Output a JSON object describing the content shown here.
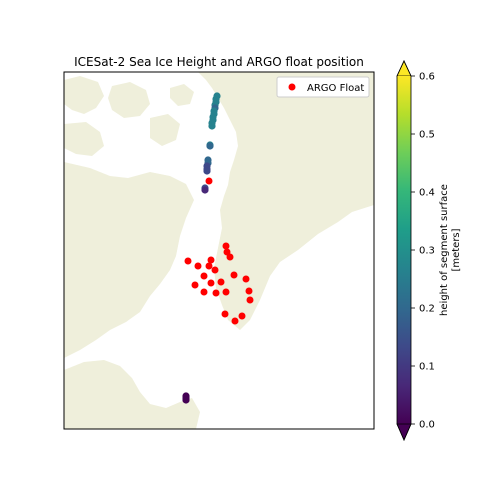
{
  "title": "ICESat-2 Sea Ice Height and ARGO float position",
  "legend": {
    "label": "ARGO Float",
    "marker_color": "#ff0000",
    "placement": "top-right"
  },
  "colorbar": {
    "label_line1": "height of segment surface",
    "label_line2": "[meters]",
    "min": 0.0,
    "max": 0.6,
    "ticks": [
      "0.0",
      "0.1",
      "0.2",
      "0.3",
      "0.4",
      "0.5",
      "0.6"
    ],
    "colormap": "viridis",
    "extend": "both"
  },
  "colors": {
    "land": "#efefdb",
    "ocean": "#ffffff",
    "argo": "#ff0000",
    "viridis": [
      "#440154",
      "#482878",
      "#3e4989",
      "#31688e",
      "#26828e",
      "#1f9e89",
      "#35b779",
      "#6ece58",
      "#b5de2b",
      "#fde725"
    ]
  }
}
